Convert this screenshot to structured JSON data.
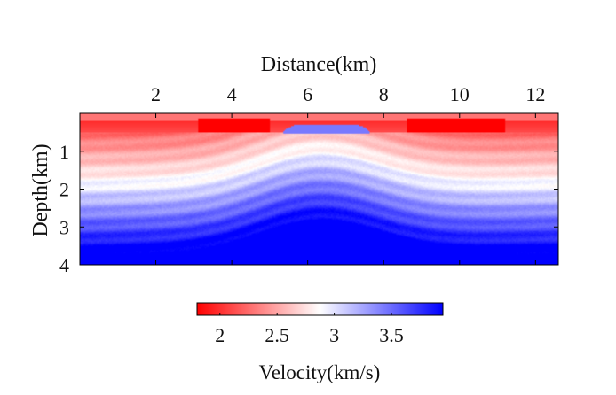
{
  "chart_data": [
    {
      "type": "heatmap",
      "title": "",
      "xlabel": "Distance(km)",
      "ylabel": "Depth(km)",
      "x_axis_position": "top",
      "xlim": [
        0,
        12.6
      ],
      "ylim": [
        0,
        4
      ],
      "y_reversed": true,
      "x_ticks": [
        2,
        4,
        6,
        8,
        10,
        12
      ],
      "y_ticks": [
        1,
        2,
        3,
        4
      ],
      "grid": false,
      "z_label": "Velocity(km/s)",
      "z_range": [
        1.8,
        3.95
      ],
      "colormap": {
        "low": "#ff0000",
        "mid": "#ffffff",
        "high": "#0000ff",
        "mid_value": 3.0
      },
      "features": {
        "water_layer_depth": [
          0,
          0.5
        ],
        "water_velocity": 1.9,
        "high_velocity_body": {
          "x_center": 6.5,
          "depth_top": 0.3,
          "width": 2.3,
          "velocity": 3.5
        },
        "deep_velocity": 3.9
      }
    },
    {
      "type": "colorbar",
      "label": "Velocity(km/s)",
      "ticks": [
        2,
        2.5,
        3,
        3.5
      ],
      "range": [
        1.8,
        3.95
      ],
      "orientation": "horizontal"
    }
  ]
}
